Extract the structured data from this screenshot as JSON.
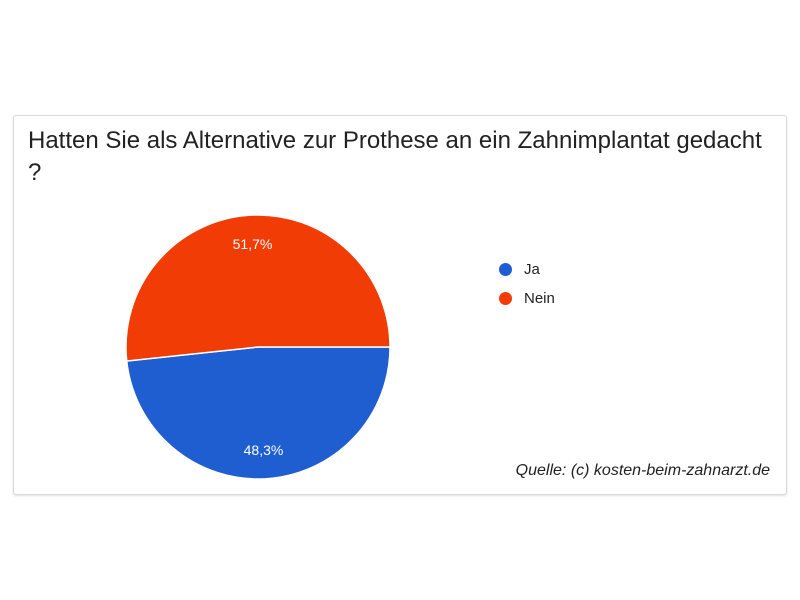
{
  "chart_data": {
    "type": "pie",
    "title": "Hatten Sie als Alternative zur Prothese an ein Zahnimplantat gedacht ?",
    "categories": [
      "Ja",
      "Nein"
    ],
    "values": [
      48.3,
      51.7
    ],
    "labels": [
      "48,3%",
      "51,7%"
    ],
    "colors": [
      "#1f5ed1",
      "#f23c05"
    ],
    "legend_position": "right",
    "source": "Quelle: (c) kosten-beim-zahnarzt.de"
  }
}
